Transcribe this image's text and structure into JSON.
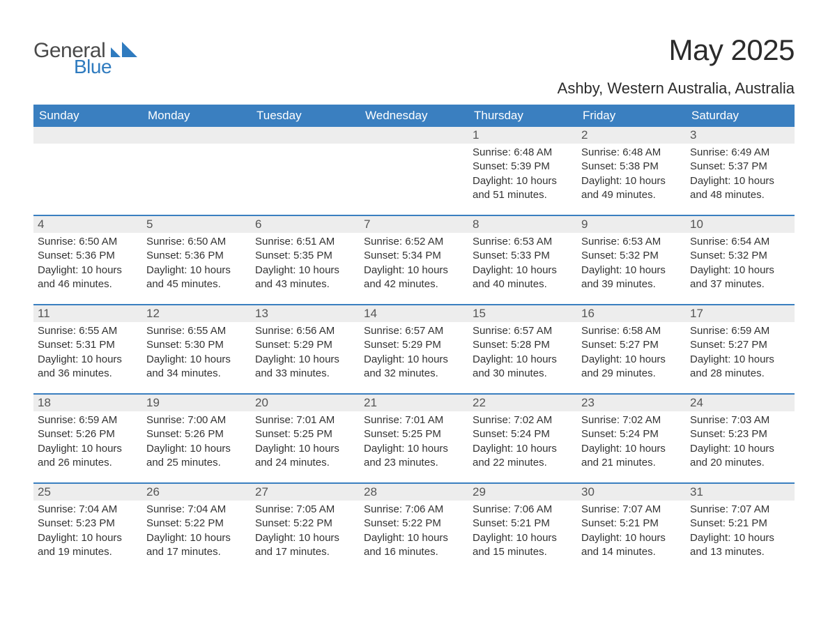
{
  "brand": {
    "word1": "General",
    "word2": "Blue",
    "icon_color": "#2f7bbf"
  },
  "title": "May 2025",
  "location": "Ashby, Western Australia, Australia",
  "colors": {
    "header_bg": "#3a7fc0",
    "header_text": "#ffffff",
    "daynum_bg": "#ededed",
    "week_border": "#3a7fc0",
    "body_text": "#333333",
    "title_text": "#2b2b2b"
  },
  "weekdays": [
    "Sunday",
    "Monday",
    "Tuesday",
    "Wednesday",
    "Thursday",
    "Friday",
    "Saturday"
  ],
  "labels": {
    "sunrise": "Sunrise:",
    "sunset": "Sunset:",
    "daylight": "Daylight:"
  },
  "weeks": [
    [
      null,
      null,
      null,
      null,
      {
        "n": "1",
        "sunrise": "6:48 AM",
        "sunset": "5:39 PM",
        "daylight": "10 hours and 51 minutes."
      },
      {
        "n": "2",
        "sunrise": "6:48 AM",
        "sunset": "5:38 PM",
        "daylight": "10 hours and 49 minutes."
      },
      {
        "n": "3",
        "sunrise": "6:49 AM",
        "sunset": "5:37 PM",
        "daylight": "10 hours and 48 minutes."
      }
    ],
    [
      {
        "n": "4",
        "sunrise": "6:50 AM",
        "sunset": "5:36 PM",
        "daylight": "10 hours and 46 minutes."
      },
      {
        "n": "5",
        "sunrise": "6:50 AM",
        "sunset": "5:36 PM",
        "daylight": "10 hours and 45 minutes."
      },
      {
        "n": "6",
        "sunrise": "6:51 AM",
        "sunset": "5:35 PM",
        "daylight": "10 hours and 43 minutes."
      },
      {
        "n": "7",
        "sunrise": "6:52 AM",
        "sunset": "5:34 PM",
        "daylight": "10 hours and 42 minutes."
      },
      {
        "n": "8",
        "sunrise": "6:53 AM",
        "sunset": "5:33 PM",
        "daylight": "10 hours and 40 minutes."
      },
      {
        "n": "9",
        "sunrise": "6:53 AM",
        "sunset": "5:32 PM",
        "daylight": "10 hours and 39 minutes."
      },
      {
        "n": "10",
        "sunrise": "6:54 AM",
        "sunset": "5:32 PM",
        "daylight": "10 hours and 37 minutes."
      }
    ],
    [
      {
        "n": "11",
        "sunrise": "6:55 AM",
        "sunset": "5:31 PM",
        "daylight": "10 hours and 36 minutes."
      },
      {
        "n": "12",
        "sunrise": "6:55 AM",
        "sunset": "5:30 PM",
        "daylight": "10 hours and 34 minutes."
      },
      {
        "n": "13",
        "sunrise": "6:56 AM",
        "sunset": "5:29 PM",
        "daylight": "10 hours and 33 minutes."
      },
      {
        "n": "14",
        "sunrise": "6:57 AM",
        "sunset": "5:29 PM",
        "daylight": "10 hours and 32 minutes."
      },
      {
        "n": "15",
        "sunrise": "6:57 AM",
        "sunset": "5:28 PM",
        "daylight": "10 hours and 30 minutes."
      },
      {
        "n": "16",
        "sunrise": "6:58 AM",
        "sunset": "5:27 PM",
        "daylight": "10 hours and 29 minutes."
      },
      {
        "n": "17",
        "sunrise": "6:59 AM",
        "sunset": "5:27 PM",
        "daylight": "10 hours and 28 minutes."
      }
    ],
    [
      {
        "n": "18",
        "sunrise": "6:59 AM",
        "sunset": "5:26 PM",
        "daylight": "10 hours and 26 minutes."
      },
      {
        "n": "19",
        "sunrise": "7:00 AM",
        "sunset": "5:26 PM",
        "daylight": "10 hours and 25 minutes."
      },
      {
        "n": "20",
        "sunrise": "7:01 AM",
        "sunset": "5:25 PM",
        "daylight": "10 hours and 24 minutes."
      },
      {
        "n": "21",
        "sunrise": "7:01 AM",
        "sunset": "5:25 PM",
        "daylight": "10 hours and 23 minutes."
      },
      {
        "n": "22",
        "sunrise": "7:02 AM",
        "sunset": "5:24 PM",
        "daylight": "10 hours and 22 minutes."
      },
      {
        "n": "23",
        "sunrise": "7:02 AM",
        "sunset": "5:24 PM",
        "daylight": "10 hours and 21 minutes."
      },
      {
        "n": "24",
        "sunrise": "7:03 AM",
        "sunset": "5:23 PM",
        "daylight": "10 hours and 20 minutes."
      }
    ],
    [
      {
        "n": "25",
        "sunrise": "7:04 AM",
        "sunset": "5:23 PM",
        "daylight": "10 hours and 19 minutes."
      },
      {
        "n": "26",
        "sunrise": "7:04 AM",
        "sunset": "5:22 PM",
        "daylight": "10 hours and 17 minutes."
      },
      {
        "n": "27",
        "sunrise": "7:05 AM",
        "sunset": "5:22 PM",
        "daylight": "10 hours and 17 minutes."
      },
      {
        "n": "28",
        "sunrise": "7:06 AM",
        "sunset": "5:22 PM",
        "daylight": "10 hours and 16 minutes."
      },
      {
        "n": "29",
        "sunrise": "7:06 AM",
        "sunset": "5:21 PM",
        "daylight": "10 hours and 15 minutes."
      },
      {
        "n": "30",
        "sunrise": "7:07 AM",
        "sunset": "5:21 PM",
        "daylight": "10 hours and 14 minutes."
      },
      {
        "n": "31",
        "sunrise": "7:07 AM",
        "sunset": "5:21 PM",
        "daylight": "10 hours and 13 minutes."
      }
    ]
  ]
}
